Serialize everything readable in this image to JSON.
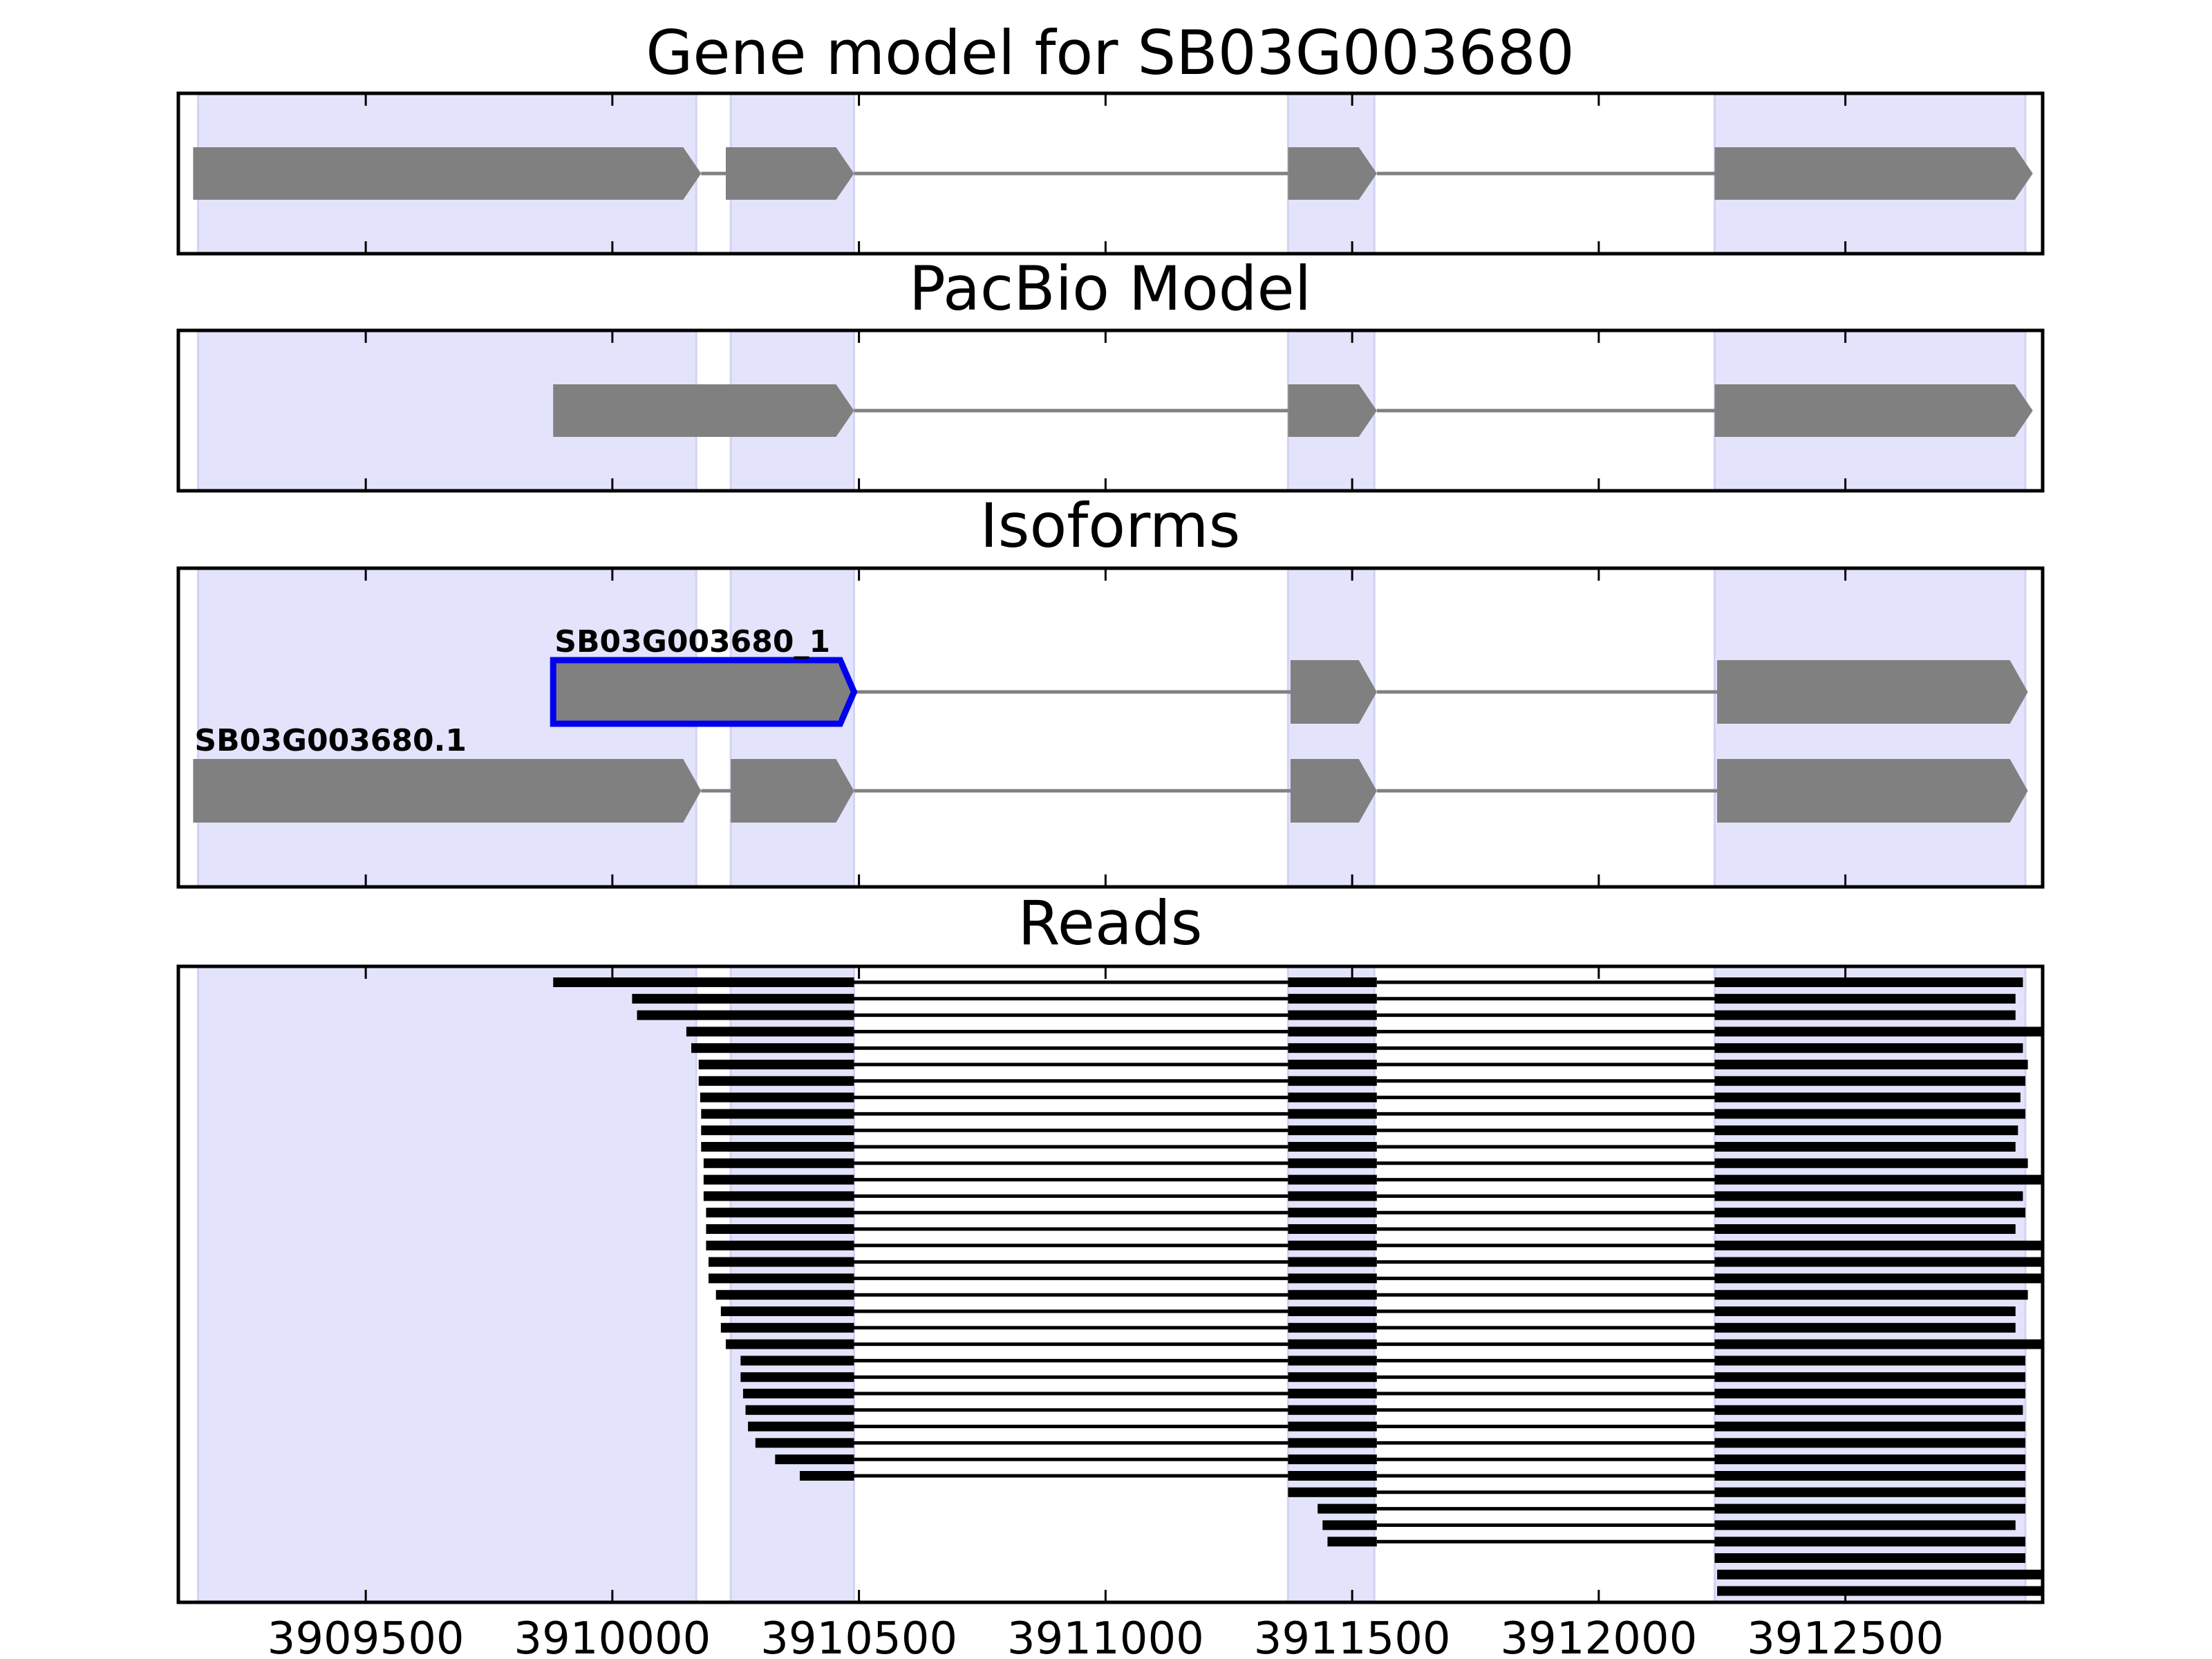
{
  "chart_data": {
    "type": "gene-model",
    "xlim": [
      3909120,
      3912900
    ],
    "x_ticks": [
      3909500,
      3910000,
      3910500,
      3911000,
      3911500,
      3912000,
      3912500
    ],
    "x_tick_labels": [
      "3909500",
      "3910000",
      "3910500",
      "3911000",
      "3911500",
      "3912000",
      "3912500"
    ],
    "colors": {
      "exon": "#808080",
      "intron": "#808080",
      "highlight": "#e3e3fb",
      "selected_outline": "#0000ee",
      "read": "#000000",
      "frame": "#000000"
    },
    "highlight_regions": [
      [
        3909160,
        3910170
      ],
      [
        3910240,
        3910490
      ],
      [
        3911370,
        3911545
      ],
      [
        3912235,
        3912865
      ]
    ],
    "panels": [
      {
        "title": "Gene model for SB03G003680",
        "tracks": [
          {
            "label": "",
            "selected": false,
            "exons": [
              [
                3909150,
                3910180
              ],
              [
                3910230,
                3910490
              ],
              [
                3911370,
                3911550
              ],
              [
                3912235,
                3912880
              ]
            ]
          }
        ]
      },
      {
        "title": "PacBio Model",
        "tracks": [
          {
            "label": "",
            "selected": false,
            "exons": [
              [
                3909880,
                3910490
              ],
              [
                3911370,
                3911550
              ],
              [
                3912235,
                3912880
              ]
            ]
          }
        ]
      },
      {
        "title": "Isoforms",
        "tracks": [
          {
            "label": "SB03G003680_1",
            "selected": true,
            "exons": [
              [
                3909880,
                3910490
              ],
              [
                3911375,
                3911550
              ],
              [
                3912240,
                3912870
              ]
            ]
          },
          {
            "label": "SB03G003680.1",
            "selected": false,
            "exons": [
              [
                3909150,
                3910180
              ],
              [
                3910240,
                3910490
              ],
              [
                3911375,
                3911550
              ],
              [
                3912240,
                3912870
              ]
            ]
          }
        ]
      },
      {
        "title": "Reads",
        "reads": [
          [
            [
              3909880,
              3910490
            ],
            [
              3911370,
              3911550
            ],
            [
              3912235,
              3912860
            ]
          ],
          [
            [
              3910040,
              3910490
            ],
            [
              3911370,
              3911550
            ],
            [
              3912235,
              3912845
            ]
          ],
          [
            [
              3910050,
              3910490
            ],
            [
              3911370,
              3911550
            ],
            [
              3912235,
              3912845
            ]
          ],
          [
            [
              3910150,
              3910490
            ],
            [
              3911370,
              3911550
            ],
            [
              3912235,
              3912900
            ]
          ],
          [
            [
              3910160,
              3910490
            ],
            [
              3911370,
              3911550
            ],
            [
              3912235,
              3912860
            ]
          ],
          [
            [
              3910175,
              3910490
            ],
            [
              3911370,
              3911550
            ],
            [
              3912235,
              3912870
            ]
          ],
          [
            [
              3910175,
              3910490
            ],
            [
              3911370,
              3911550
            ],
            [
              3912235,
              3912865
            ]
          ],
          [
            [
              3910178,
              3910490
            ],
            [
              3911370,
              3911550
            ],
            [
              3912235,
              3912855
            ]
          ],
          [
            [
              3910180,
              3910490
            ],
            [
              3911370,
              3911550
            ],
            [
              3912235,
              3912865
            ]
          ],
          [
            [
              3910180,
              3910490
            ],
            [
              3911370,
              3911550
            ],
            [
              3912235,
              3912850
            ]
          ],
          [
            [
              3910180,
              3910490
            ],
            [
              3911370,
              3911550
            ],
            [
              3912235,
              3912845
            ]
          ],
          [
            [
              3910185,
              3910490
            ],
            [
              3911370,
              3911550
            ],
            [
              3912235,
              3912870
            ]
          ],
          [
            [
              3910185,
              3910490
            ],
            [
              3911370,
              3911550
            ],
            [
              3912235,
              3912900
            ]
          ],
          [
            [
              3910185,
              3910490
            ],
            [
              3911370,
              3911550
            ],
            [
              3912235,
              3912860
            ]
          ],
          [
            [
              3910190,
              3910490
            ],
            [
              3911370,
              3911550
            ],
            [
              3912235,
              3912865
            ]
          ],
          [
            [
              3910190,
              3910490
            ],
            [
              3911370,
              3911550
            ],
            [
              3912235,
              3912845
            ]
          ],
          [
            [
              3910190,
              3910490
            ],
            [
              3911370,
              3911550
            ],
            [
              3912235,
              3912900
            ]
          ],
          [
            [
              3910195,
              3910490
            ],
            [
              3911370,
              3911550
            ],
            [
              3912235,
              3912900
            ]
          ],
          [
            [
              3910195,
              3910490
            ],
            [
              3911370,
              3911550
            ],
            [
              3912235,
              3912900
            ]
          ],
          [
            [
              3910210,
              3910490
            ],
            [
              3911370,
              3911550
            ],
            [
              3912235,
              3912870
            ]
          ],
          [
            [
              3910220,
              3910490
            ],
            [
              3911370,
              3911550
            ],
            [
              3912235,
              3912845
            ]
          ],
          [
            [
              3910220,
              3910490
            ],
            [
              3911370,
              3911550
            ],
            [
              3912235,
              3912845
            ]
          ],
          [
            [
              3910230,
              3910490
            ],
            [
              3911370,
              3911550
            ],
            [
              3912235,
              3912900
            ]
          ],
          [
            [
              3910260,
              3910490
            ],
            [
              3911370,
              3911550
            ],
            [
              3912235,
              3912865
            ]
          ],
          [
            [
              3910260,
              3910490
            ],
            [
              3911370,
              3911550
            ],
            [
              3912235,
              3912865
            ]
          ],
          [
            [
              3910265,
              3910490
            ],
            [
              3911370,
              3911550
            ],
            [
              3912235,
              3912865
            ]
          ],
          [
            [
              3910270,
              3910490
            ],
            [
              3911370,
              3911550
            ],
            [
              3912235,
              3912860
            ]
          ],
          [
            [
              3910275,
              3910490
            ],
            [
              3911370,
              3911550
            ],
            [
              3912235,
              3912865
            ]
          ],
          [
            [
              3910290,
              3910490
            ],
            [
              3911370,
              3911550
            ],
            [
              3912235,
              3912865
            ]
          ],
          [
            [
              3910330,
              3910490
            ],
            [
              3911370,
              3911550
            ],
            [
              3912235,
              3912865
            ]
          ],
          [
            [
              3910380,
              3910490
            ],
            [
              3911370,
              3911550
            ],
            [
              3912235,
              3912865
            ]
          ],
          [
            [
              3911370,
              3911550
            ],
            [
              3912235,
              3912865
            ]
          ],
          [
            [
              3911430,
              3911550
            ],
            [
              3912235,
              3912865
            ]
          ],
          [
            [
              3911440,
              3911550
            ],
            [
              3912235,
              3912845
            ]
          ],
          [
            [
              3911450,
              3911550
            ],
            [
              3912235,
              3912865
            ]
          ],
          [
            [
              3912235,
              3912865
            ]
          ],
          [
            [
              3912240,
              3912900
            ]
          ],
          [
            [
              3912240,
              3912900
            ]
          ]
        ]
      }
    ]
  }
}
